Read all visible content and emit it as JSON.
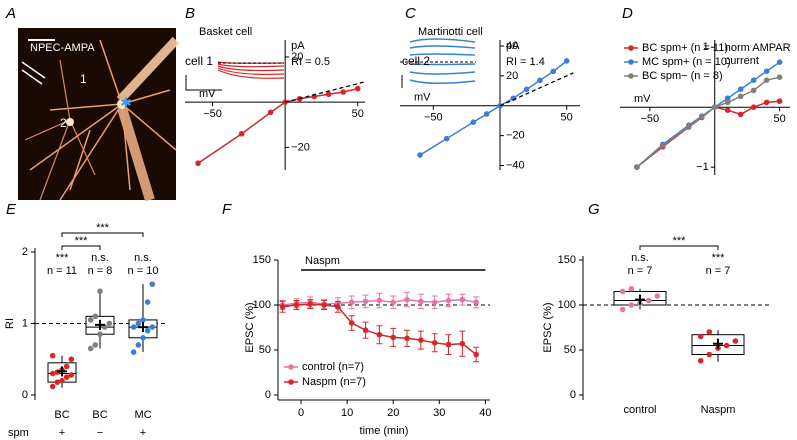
{
  "chart_data": [
    {
      "type": "image",
      "panel": "A",
      "labels": [
        "NPEC-AMPA",
        "1",
        "2"
      ]
    },
    {
      "type": "iv",
      "panel": "B",
      "title": "Basket cell",
      "cell_label": "cell 1",
      "annotation": "RI = 0.5",
      "xlabel": "mV",
      "ylabel": "pA",
      "xlim": [
        -69,
        55
      ],
      "ylim": [
        -30,
        27.5
      ],
      "xticks": [
        {
          "value": -50,
          "label": "−50"
        },
        50
      ],
      "yticks": [
        20,
        {
          "value": -20,
          "label": "−20"
        }
      ],
      "x": [
        -60,
        -30,
        -10,
        0,
        10,
        20,
        30,
        40,
        50
      ],
      "series": [
        {
          "color": "#d62728",
          "values": [
            -27,
            -14,
            -4.5,
            0,
            1.5,
            2.5,
            3.5,
            4.5,
            6
          ]
        },
        {
          "color": "#000000",
          "dashed": true,
          "x": [
            0,
            55
          ],
          "values": [
            0,
            9
          ]
        }
      ]
    },
    {
      "type": "iv",
      "panel": "C",
      "title": "Martinotti cell",
      "cell_label": "cell 2",
      "annotation": "RI = 1.4",
      "xlabel": "mV",
      "ylabel": "pA",
      "xlim": [
        -75,
        60
      ],
      "ylim": [
        -43,
        44
      ],
      "xticks": [
        {
          "value": -50,
          "label": "−50"
        },
        50
      ],
      "yticks": [
        40,
        20,
        {
          "value": -20,
          "label": "−20"
        },
        {
          "value": -40,
          "label": "−40"
        }
      ],
      "x": [
        -60,
        -40,
        -20,
        -10,
        0,
        10,
        20,
        30,
        40,
        50
      ],
      "series": [
        {
          "color": "#3a7fd5",
          "values": [
            -33,
            -22,
            -11,
            -5.5,
            0,
            5,
            11,
            17,
            23,
            30
          ]
        },
        {
          "color": "#000000",
          "dashed": true,
          "x": [
            0,
            55
          ],
          "values": [
            0,
            22
          ]
        }
      ]
    },
    {
      "type": "iv",
      "panel": "D",
      "xlabel": "mV",
      "ylabel": [
        "norm AMPAR",
        "current"
      ],
      "xlim": [
        -73,
        58
      ],
      "ylim": [
        -1.13,
        1.12
      ],
      "xticks": [
        {
          "value": -50,
          "label": "−50"
        },
        50
      ],
      "yticks": [
        1,
        {
          "value": -1,
          "label": "−1"
        }
      ],
      "legend": "upper left",
      "x": [
        -60,
        -40,
        -20,
        -10,
        0,
        10,
        20,
        30,
        40,
        50
      ],
      "series": [
        {
          "name": "BC spm+ (n = 11)",
          "color": "#d62728",
          "values": [
            -1,
            -0.66,
            -0.33,
            -0.17,
            0,
            -0.05,
            -0.12,
            0,
            0.08,
            0.1
          ]
        },
        {
          "name": "MC spm+ (n = 10)",
          "color": "#3a7fd5",
          "values": [
            -1,
            -0.62,
            -0.3,
            -0.15,
            0,
            0.15,
            0.3,
            0.45,
            0.6,
            0.75
          ]
        },
        {
          "name": "BC spm− (n = 8)",
          "color": "#7f7f7f",
          "values": [
            -1,
            -0.64,
            -0.32,
            -0.16,
            0,
            0.08,
            0.18,
            0.28,
            0.45,
            0.5
          ]
        }
      ]
    },
    {
      "type": "box",
      "panel": "E",
      "ylabel": "RI",
      "ylim": [
        0,
        2
      ],
      "yticks": [
        0,
        1,
        2
      ],
      "reference_line": 1,
      "categories": [
        "BC",
        "BC",
        "MC"
      ],
      "row_label": "spm",
      "row_values": [
        "+",
        "−",
        "+"
      ],
      "colors": [
        "#d62728",
        "#7f7f7f",
        "#3a7fd5"
      ],
      "n_labels": [
        "n = 11",
        "n = 8",
        "n = 10"
      ],
      "significance": [
        "***",
        "n.s.",
        "n.s."
      ],
      "brackets": [
        "***",
        "***"
      ],
      "boxes": [
        {
          "whisker_low": 0.1,
          "q1": 0.18,
          "median": 0.3,
          "q3": 0.45,
          "whisker_high": 0.55,
          "mean": 0.33
        },
        {
          "whisker_low": 0.65,
          "q1": 0.85,
          "median": 0.95,
          "q3": 1.1,
          "whisker_high": 1.45,
          "mean": 0.98
        },
        {
          "whisker_low": 0.6,
          "q1": 0.8,
          "median": 0.95,
          "q3": 1.05,
          "whisker_high": 1.55,
          "mean": 0.95
        }
      ],
      "points": [
        [
          0.12,
          0.18,
          0.2,
          0.25,
          0.28,
          0.3,
          0.32,
          0.35,
          0.4,
          0.5,
          0.55
        ],
        [
          0.65,
          0.7,
          0.85,
          0.95,
          1.0,
          1.05,
          1.1,
          1.45
        ],
        [
          0.6,
          0.7,
          0.8,
          0.9,
          0.95,
          0.95,
          1.0,
          1.05,
          1.3,
          1.55
        ]
      ]
    },
    {
      "type": "line",
      "panel": "F",
      "xlabel": "time (min)",
      "ylabel": "EPSC (%)",
      "xlim": [
        -5,
        41
      ],
      "ylim": [
        0,
        150
      ],
      "xticks": [
        0,
        10,
        20,
        30,
        40
      ],
      "yticks": [
        0,
        50,
        100,
        150
      ],
      "reference_line": 100,
      "legend": "lower left",
      "drug_application": {
        "label": "Naspm",
        "x": [
          0,
          40
        ]
      },
      "x": [
        -4,
        -1,
        2,
        5,
        8,
        11,
        14,
        17,
        20,
        23,
        26,
        29,
        32,
        35,
        38
      ],
      "series": [
        {
          "name": "control (n=7)",
          "color": "#e377a8",
          "values": [
            100,
            102,
            103,
            101,
            102,
            103,
            104,
            105,
            103,
            106,
            104,
            103,
            105,
            106,
            103
          ],
          "err": [
            5,
            5,
            6,
            5,
            6,
            7,
            7,
            8,
            7,
            8,
            8,
            7,
            7,
            6,
            6
          ]
        },
        {
          "name": "Naspm (n=7)",
          "color": "#d62728",
          "values": [
            98,
            100,
            101,
            100,
            98,
            80,
            72,
            67,
            64,
            63,
            61,
            58,
            56,
            57,
            45
          ],
          "err": [
            6,
            5,
            5,
            5,
            6,
            8,
            9,
            10,
            10,
            9,
            10,
            10,
            11,
            14,
            8
          ]
        }
      ]
    },
    {
      "type": "box",
      "panel": "G",
      "ylabel": "EPSC (%)",
      "ylim": [
        0,
        150
      ],
      "yticks": [
        0,
        50,
        100,
        150
      ],
      "reference_line": 100,
      "categories": [
        "control",
        "Naspm"
      ],
      "colors": [
        "#e377a8",
        "#d62728"
      ],
      "n_labels": [
        "n = 7",
        "n = 7"
      ],
      "significance": [
        "n.s.",
        "***"
      ],
      "brackets": [
        "***"
      ],
      "boxes": [
        {
          "whisker_low": 95,
          "q1": 100,
          "median": 105,
          "q3": 115,
          "whisker_high": 118,
          "mean": 106
        },
        {
          "whisker_low": 37,
          "q1": 45,
          "median": 55,
          "q3": 67,
          "whisker_high": 72,
          "mean": 57
        }
      ],
      "points": [
        [
          95,
          100,
          102,
          105,
          110,
          115,
          118
        ],
        [
          38,
          45,
          52,
          55,
          60,
          65,
          70
        ]
      ]
    }
  ]
}
